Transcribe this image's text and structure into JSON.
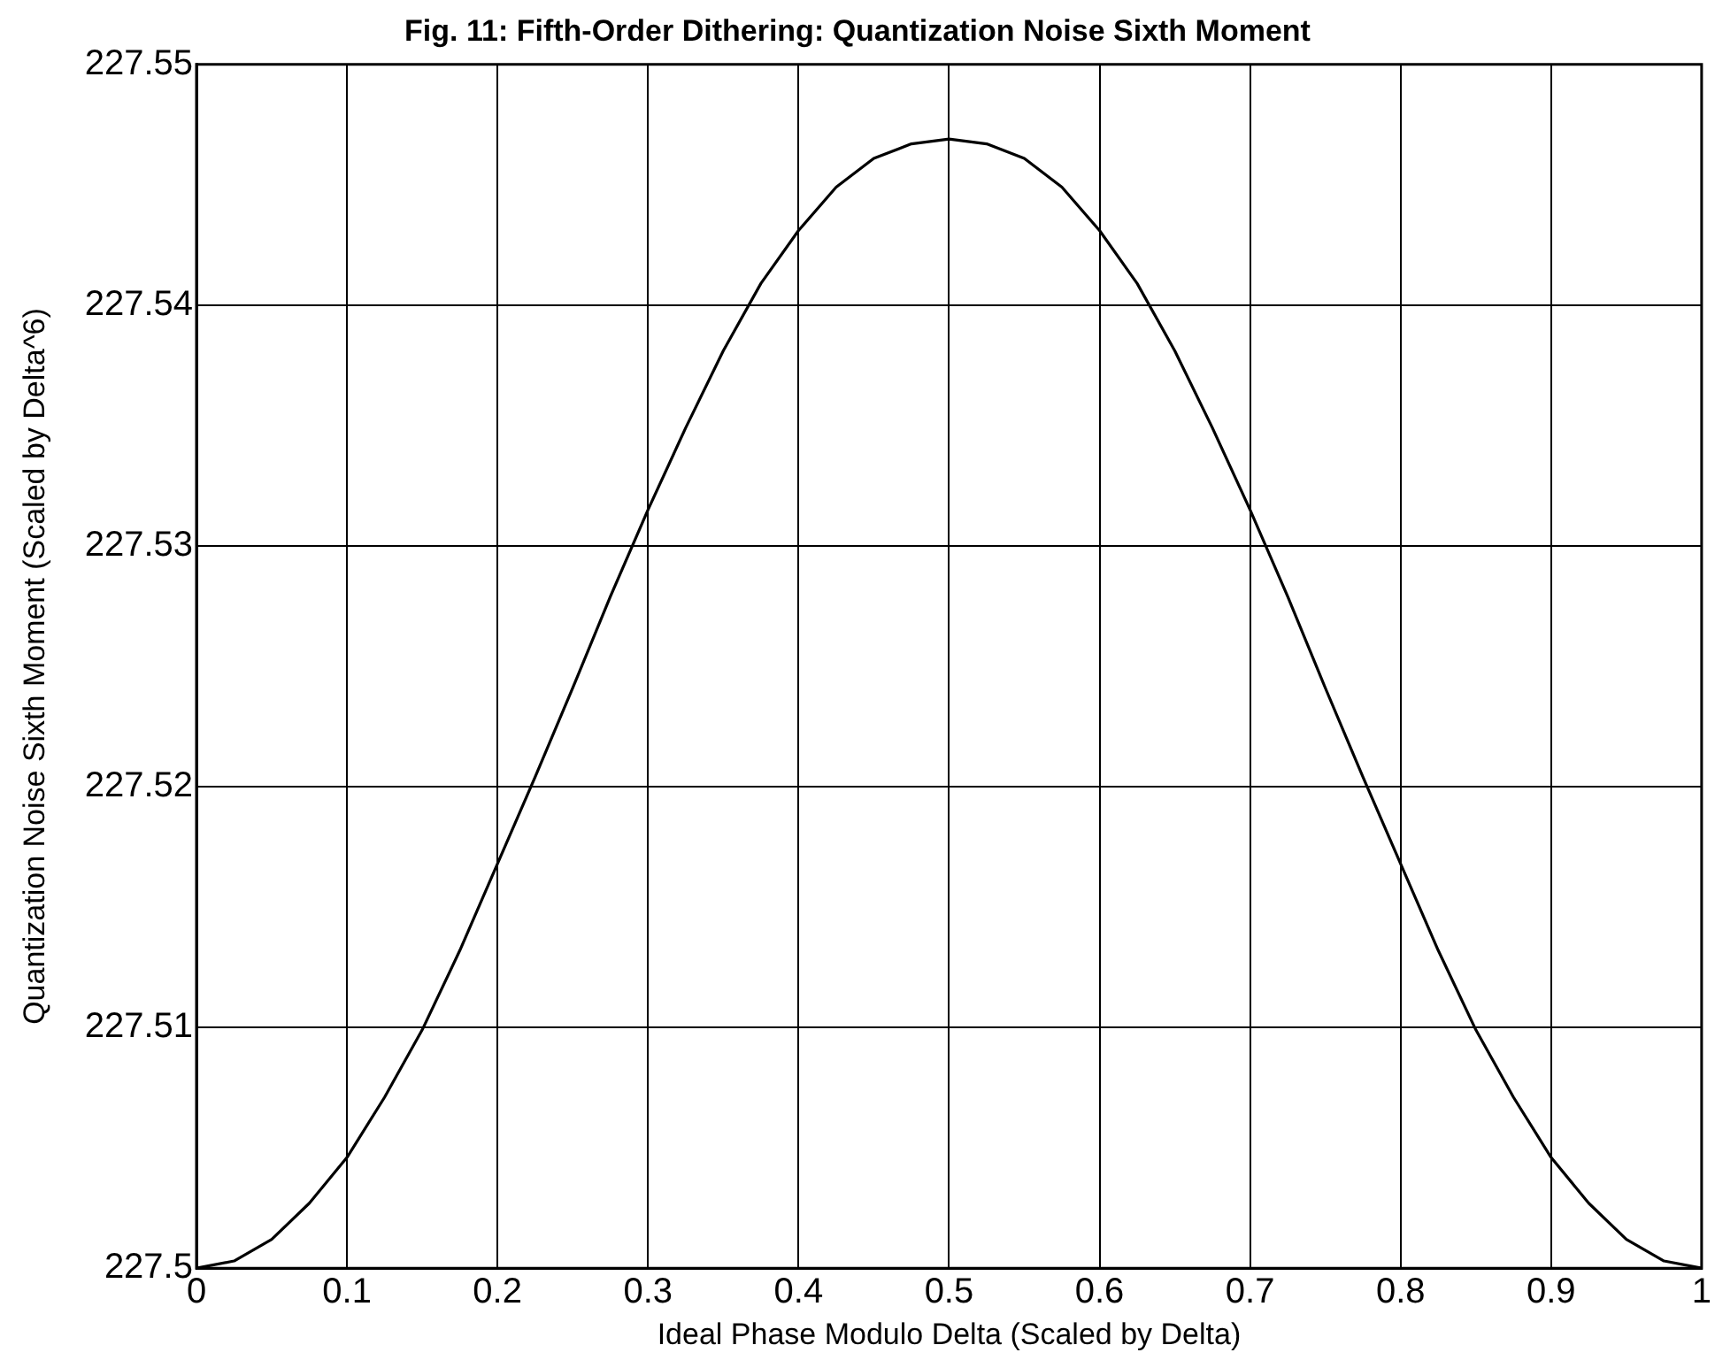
{
  "chart_data": {
    "type": "line",
    "title": "Fig. 11: Fifth-Order Dithering: Quantization Noise Sixth Moment",
    "xlabel": "Ideal Phase Modulo Delta (Scaled by Delta)",
    "ylabel": "Quantization Noise Sixth Moment (Scaled by Delta^6)",
    "x": [
      0,
      0.025,
      0.05,
      0.075,
      0.1,
      0.125,
      0.15,
      0.175,
      0.2,
      0.225,
      0.25,
      0.275,
      0.3,
      0.325,
      0.35,
      0.375,
      0.4,
      0.425,
      0.45,
      0.475,
      0.5,
      0.525,
      0.55,
      0.575,
      0.6,
      0.625,
      0.65,
      0.675,
      0.7,
      0.725,
      0.75,
      0.775,
      0.8,
      0.825,
      0.85,
      0.875,
      0.9,
      0.925,
      0.95,
      0.975,
      1
    ],
    "series": [
      {
        "color": "#000000",
        "values": [
          227.5,
          227.5003,
          227.5012,
          227.5027,
          227.5046,
          227.5071,
          227.5099,
          227.5132,
          227.5168,
          227.5204,
          227.5241,
          227.5279,
          227.5315,
          227.5349,
          227.5381,
          227.5409,
          227.5431,
          227.5449,
          227.5461,
          227.5467,
          227.5469,
          227.5467,
          227.5461,
          227.5449,
          227.5431,
          227.5409,
          227.5381,
          227.5349,
          227.5315,
          227.5279,
          227.5241,
          227.5204,
          227.5168,
          227.5132,
          227.5099,
          227.5071,
          227.5046,
          227.5027,
          227.5012,
          227.5003,
          227.5
        ]
      }
    ],
    "xlim": [
      0,
      1
    ],
    "xticks": [
      0,
      0.1,
      0.2,
      0.3,
      0.4,
      0.5,
      0.6,
      0.7,
      0.8,
      0.9,
      1
    ],
    "ylim": [
      227.5,
      227.55
    ],
    "yticks": [
      227.5,
      227.51,
      227.52,
      227.53,
      227.54,
      227.55
    ],
    "grid": true,
    "legend": false,
    "marker": "none",
    "line_style": "solid"
  }
}
